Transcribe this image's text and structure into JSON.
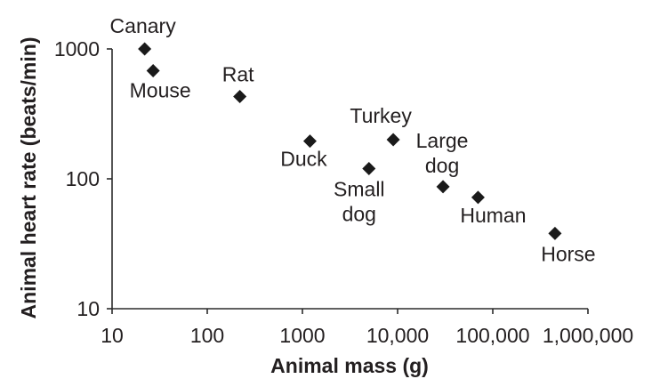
{
  "chart_data": {
    "type": "scatter",
    "xlabel": "Animal mass (g)",
    "ylabel": "Animal heart rate (beats/min)",
    "xscale": "log",
    "yscale": "log",
    "xlim": [
      10,
      1000000
    ],
    "ylim": [
      10,
      1000
    ],
    "xticks": [
      10,
      100,
      1000,
      10000,
      100000,
      1000000
    ],
    "xtick_labels": [
      "10",
      "100",
      "1000",
      "10,000",
      "100,000",
      "1,000,000"
    ],
    "yticks": [
      10,
      100,
      1000
    ],
    "ytick_labels": [
      "10",
      "100",
      "1000"
    ],
    "grid": false,
    "marker_color": "#1a1a1a",
    "points": [
      {
        "label": [
          "Canary"
        ],
        "x": 22,
        "y": 1000
      },
      {
        "label": [
          "Mouse"
        ],
        "x": 27,
        "y": 680
      },
      {
        "label": [
          "Rat"
        ],
        "x": 220,
        "y": 430
      },
      {
        "label": [
          "Duck"
        ],
        "x": 1200,
        "y": 195
      },
      {
        "label": [
          "Small",
          "dog"
        ],
        "x": 5000,
        "y": 120
      },
      {
        "label": [
          "Turkey"
        ],
        "x": 9000,
        "y": 200
      },
      {
        "label": [
          "Large",
          "dog"
        ],
        "x": 30000,
        "y": 87
      },
      {
        "label": [
          "Human"
        ],
        "x": 70000,
        "y": 72
      },
      {
        "label": [
          "Horse"
        ],
        "x": 450000,
        "y": 38
      }
    ]
  }
}
